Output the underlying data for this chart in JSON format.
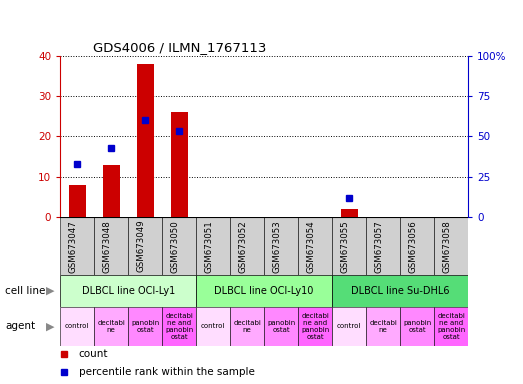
{
  "title": "GDS4006 / ILMN_1767113",
  "samples": [
    "GSM673047",
    "GSM673048",
    "GSM673049",
    "GSM673050",
    "GSM673051",
    "GSM673052",
    "GSM673053",
    "GSM673054",
    "GSM673055",
    "GSM673057",
    "GSM673056",
    "GSM673058"
  ],
  "count_values": [
    8,
    13,
    38,
    26,
    0,
    0,
    0,
    0,
    2,
    0,
    0,
    0
  ],
  "percentile_values": [
    33,
    43,
    60,
    53,
    0,
    0,
    0,
    0,
    12,
    0,
    0,
    0
  ],
  "ylim_left": [
    0,
    40
  ],
  "ylim_right": [
    0,
    100
  ],
  "yticks_left": [
    0,
    10,
    20,
    30,
    40
  ],
  "yticks_right": [
    0,
    25,
    50,
    75,
    100
  ],
  "ytick_labels_right": [
    "0",
    "25",
    "50",
    "75",
    "100%"
  ],
  "bar_color": "#cc0000",
  "dot_color": "#0000cc",
  "cell_lines": [
    {
      "label": "DLBCL line OCI-Ly1",
      "start": 0,
      "end": 4,
      "color": "#ccffcc"
    },
    {
      "label": "DLBCL line OCI-Ly10",
      "start": 4,
      "end": 8,
      "color": "#99ff99"
    },
    {
      "label": "DLBCL line Su-DHL6",
      "start": 8,
      "end": 12,
      "color": "#55dd77"
    }
  ],
  "agent_labels": [
    "control",
    "decitabi\nne",
    "panobin\nostat",
    "decitabi\nne and\npanobin\nostat",
    "control",
    "decitabi\nne",
    "panobin\nostat",
    "decitabi\nne and\npanobin\nostat",
    "control",
    "decitabi\nne",
    "panobin\nostat",
    "decitabi\nne and\npanobin\nostat"
  ],
  "agent_colors": [
    "#ffddff",
    "#ffaaff",
    "#ff88ff",
    "#ff66ff"
  ],
  "bg_color": "#ffffff",
  "left_axis_color": "#cc0000",
  "right_axis_color": "#0000cc",
  "xtick_bg_color": "#d0d0d0",
  "left_label_color": "#888888"
}
